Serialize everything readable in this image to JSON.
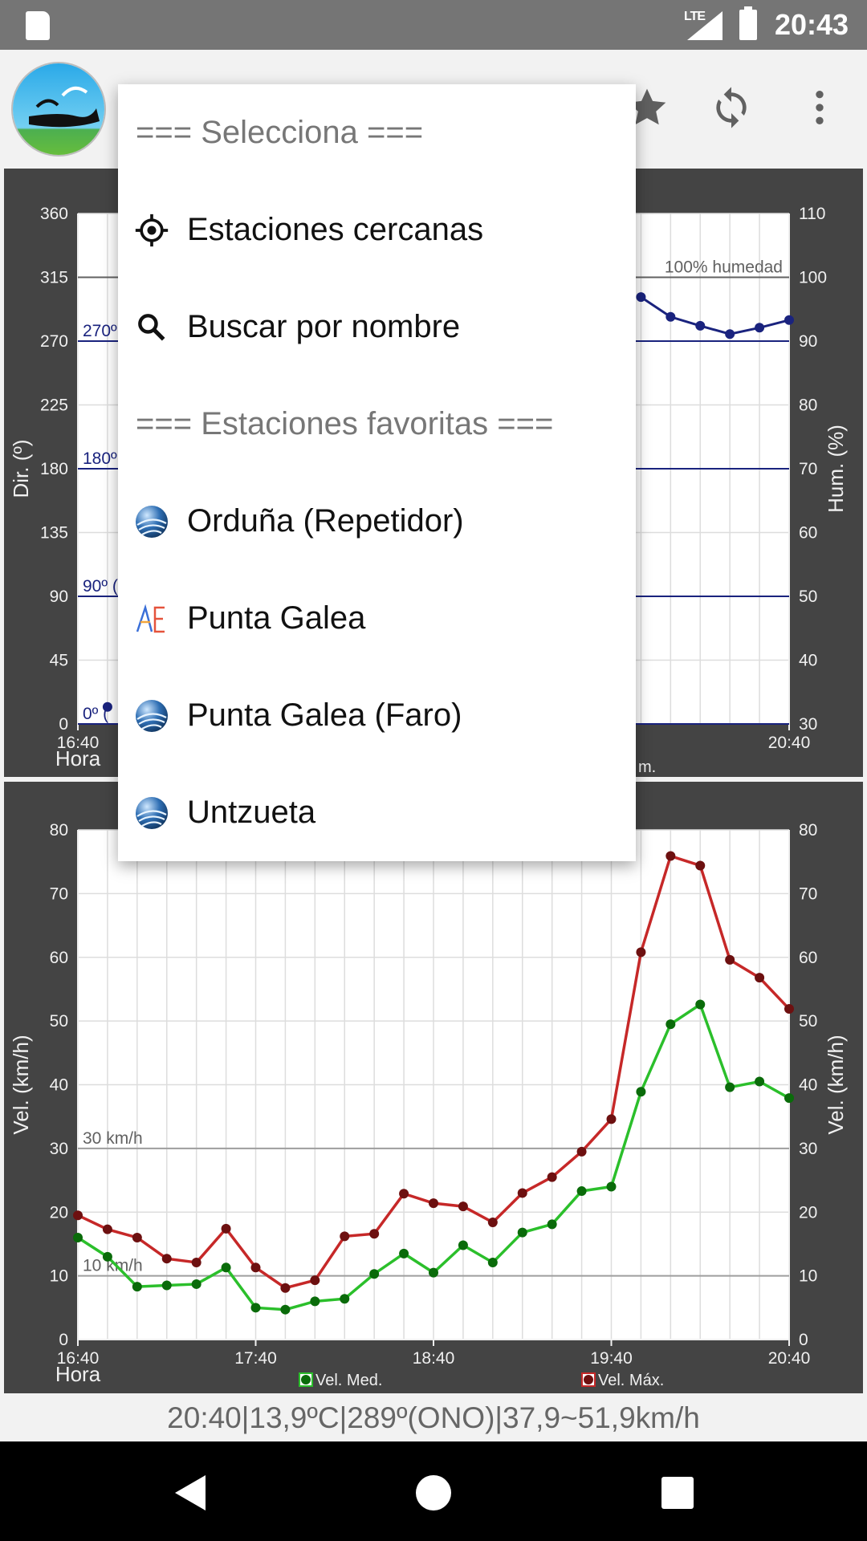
{
  "status_bar": {
    "network": "LTE",
    "time": "20:43"
  },
  "app_bar": {
    "icons": [
      "app-logo-icon",
      "star-icon",
      "sync-icon",
      "more-vert-icon"
    ]
  },
  "dropdown": {
    "items": [
      {
        "label": "=== Selecciona ===",
        "type": "header",
        "icon": ""
      },
      {
        "label": "Estaciones cercanas",
        "type": "option",
        "icon": "gps-target-icon"
      },
      {
        "label": "Buscar por nombre",
        "type": "option",
        "icon": "search-icon"
      },
      {
        "label": "=== Estaciones favoritas ===",
        "type": "header",
        "icon": ""
      },
      {
        "label": "Orduña (Repetidor)",
        "type": "option",
        "icon": "globe-icon"
      },
      {
        "label": "Punta Galea",
        "type": "option",
        "icon": "ae-logo-icon"
      },
      {
        "label": "Punta Galea (Faro)",
        "type": "option",
        "icon": "globe-icon"
      },
      {
        "label": "Untzueta",
        "type": "option",
        "icon": "globe-icon"
      }
    ]
  },
  "chart_data": [
    {
      "type": "line",
      "ylabel": "Dir. (º)",
      "ylabel_right": "Hum. (%)",
      "xlabel": "Hora",
      "x_ticks": [
        "16:40",
        "20:40"
      ],
      "y_ticks": [
        0,
        45,
        90,
        135,
        180,
        225,
        270,
        315,
        360
      ],
      "y2_ticks": [
        30,
        40,
        50,
        60,
        70,
        80,
        90,
        100,
        110
      ],
      "ylim": [
        0,
        360
      ],
      "y2lim": [
        30,
        110
      ],
      "reference_lines": [
        {
          "label": "100% humedad",
          "axis": "right",
          "value": 100,
          "color": "#616161"
        },
        {
          "label": "270º",
          "axis": "left",
          "value": 270,
          "color": "#1a237e"
        },
        {
          "label": "180º",
          "axis": "left",
          "value": 180,
          "color": "#1a237e"
        },
        {
          "label": "90º (",
          "axis": "left",
          "value": 90,
          "color": "#1a237e"
        },
        {
          "label": "0º (",
          "axis": "left",
          "value": 0,
          "color": "#1a237e"
        }
      ],
      "legend_fragment": "m.",
      "series": [
        {
          "axis": "right",
          "color": "#1a237e",
          "x_index": [
            19,
            20,
            21,
            22,
            23,
            24
          ],
          "values": [
            96.9,
            93.8,
            92.4,
            91.1,
            92.1,
            93.3
          ]
        },
        {
          "axis": "left",
          "color": "#1a237e",
          "x_index": [
            1
          ],
          "values": [
            12
          ]
        }
      ]
    },
    {
      "type": "line",
      "ylabel": "Vel. (km/h)",
      "ylabel_right": "Vel. (km/h)",
      "xlabel": "Hora",
      "x_ticks": [
        "16:40",
        "17:40",
        "18:40",
        "19:40",
        "20:40"
      ],
      "y_ticks": [
        0,
        10,
        20,
        30,
        40,
        50,
        60,
        70,
        80
      ],
      "ylim": [
        0,
        80
      ],
      "reference_lines": [
        {
          "label": "30 km/h",
          "value": 30,
          "color": "#9e9e9e"
        },
        {
          "label": "10 km/h",
          "value": 10,
          "color": "#9e9e9e"
        }
      ],
      "legend": [
        "Vel. Med.",
        "Vel. Máx."
      ],
      "series": [
        {
          "name": "Vel. Med.",
          "color": "#2bbf2b",
          "marker_color": "#0a6b0a",
          "values": [
            16,
            13,
            8.3,
            8.5,
            8.7,
            11.3,
            5,
            4.7,
            6,
            6.4,
            10.3,
            13.5,
            10.5,
            14.8,
            12.1,
            16.8,
            18.1,
            23.3,
            24,
            38.9,
            49.5,
            52.6,
            39.6,
            40.5,
            37.9
          ]
        },
        {
          "name": "Vel. Máx.",
          "color": "#c62828",
          "marker_color": "#6d1010",
          "values": [
            19.5,
            17.3,
            16,
            12.7,
            12.1,
            17.4,
            11.3,
            8.1,
            9.3,
            16.2,
            16.6,
            22.9,
            21.4,
            20.9,
            18.4,
            23,
            25.5,
            29.5,
            34.6,
            60.8,
            75.9,
            74.4,
            59.6,
            56.8,
            51.9
          ]
        }
      ]
    }
  ],
  "bottom_info": "20:40|13,9ºC|289º(ONO)|37,9~51,9km/h"
}
